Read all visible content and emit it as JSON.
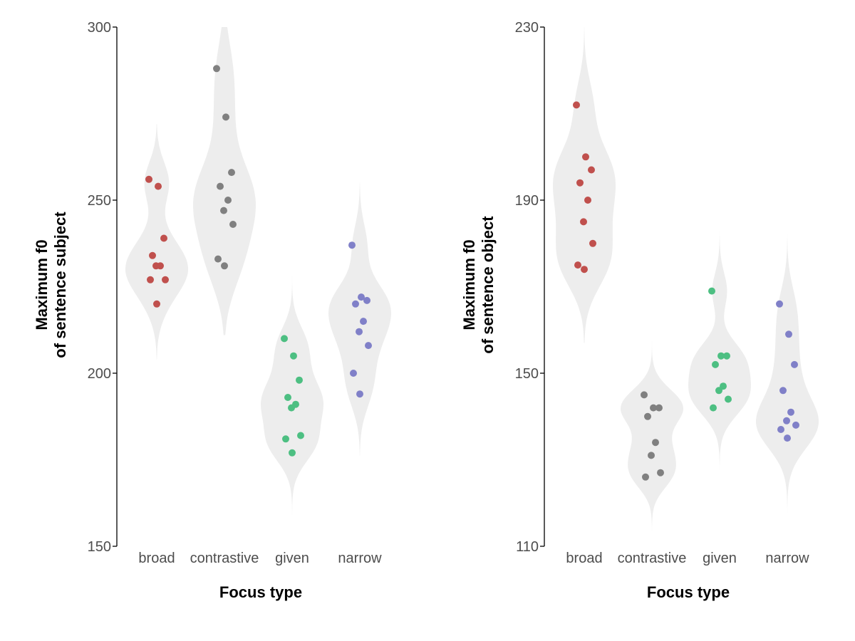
{
  "chart_data": [
    {
      "type": "violin",
      "ylabel_lines": [
        "Maximum f0",
        "of sentence subject"
      ],
      "xlabel": "Focus type",
      "ylim": [
        150,
        300
      ],
      "yticks": [
        "150",
        "200",
        "250",
        "300"
      ],
      "categories": [
        "broad",
        "contrastive",
        "given",
        "narrow"
      ],
      "series": [
        {
          "category": "broad",
          "color": "#c0504d",
          "violin_range": [
            204,
            272
          ],
          "points": [
            256,
            254,
            239,
            234,
            231,
            231,
            227,
            227,
            220
          ]
        },
        {
          "category": "contrastive",
          "color": "#808080",
          "violin_range": [
            211,
            300
          ],
          "points": [
            288,
            274,
            258,
            254,
            250,
            247,
            243,
            233,
            231
          ]
        },
        {
          "category": "given",
          "color": "#4dbf82",
          "violin_range": [
            158,
            229
          ],
          "points": [
            210,
            205,
            198,
            193,
            191,
            190,
            182,
            181,
            177
          ]
        },
        {
          "category": "narrow",
          "color": "#8080c8",
          "violin_range": [
            176,
            255
          ],
          "points": [
            237,
            222,
            221,
            220,
            215,
            212,
            208,
            200,
            194
          ]
        }
      ],
      "grid": false,
      "legend": "none"
    },
    {
      "type": "violin",
      "ylabel_lines": [
        "Maximum f0",
        "of sentence object"
      ],
      "xlabel": "Focus type",
      "ylim": [
        110,
        230
      ],
      "yticks": [
        "110",
        "150",
        "190",
        "230"
      ],
      "categories": [
        "broad",
        "contrastive",
        "given",
        "narrow"
      ],
      "series": [
        {
          "category": "broad",
          "color": "#c0504d",
          "violin_range": [
            157,
            230
          ],
          "points": [
            212,
            200,
            197,
            194,
            190,
            185,
            180,
            175,
            174
          ]
        },
        {
          "category": "contrastive",
          "color": "#808080",
          "violin_range": [
            113,
            158
          ],
          "points": [
            145,
            142,
            142,
            140,
            134,
            131,
            127,
            126
          ]
        },
        {
          "category": "given",
          "color": "#4dbf82",
          "violin_range": [
            126,
            188
          ],
          "points": [
            169,
            154,
            154,
            152,
            147,
            146,
            144,
            142
          ]
        },
        {
          "category": "narrow",
          "color": "#8080c8",
          "violin_range": [
            112,
            182
          ],
          "points": [
            166,
            159,
            152,
            146,
            141,
            139,
            138,
            137,
            135
          ]
        }
      ],
      "grid": false,
      "legend": "none"
    }
  ]
}
